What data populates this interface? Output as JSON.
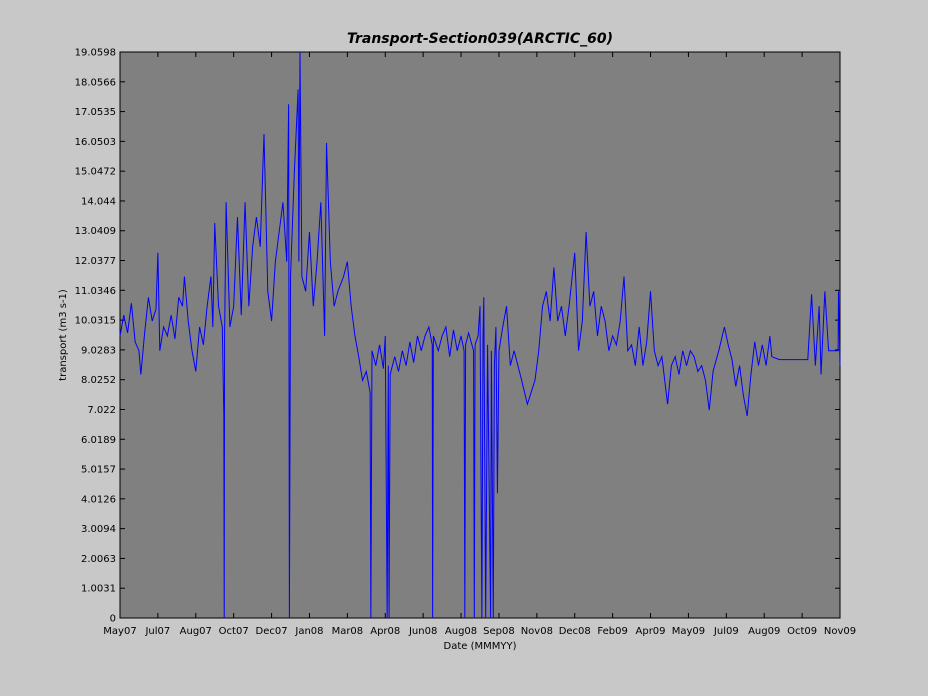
{
  "chart_data": {
    "type": "line",
    "title": "Transport-Section039(ARCTIC_60)",
    "x_label": "Date (MMMYY)",
    "y_label": "transport (m3 s-1)",
    "xlim": [
      0,
      19
    ],
    "ylim": [
      0,
      19.0598
    ],
    "xticks": [
      {
        "value": 0,
        "label": "May07"
      },
      {
        "value": 1,
        "label": "Jul07"
      },
      {
        "value": 2,
        "label": "Aug07"
      },
      {
        "value": 3,
        "label": "Oct07"
      },
      {
        "value": 4,
        "label": "Dec07"
      },
      {
        "value": 5,
        "label": "Jan08"
      },
      {
        "value": 6,
        "label": "Mar08"
      },
      {
        "value": 7,
        "label": "Apr08"
      },
      {
        "value": 8,
        "label": "Jun08"
      },
      {
        "value": 9,
        "label": "Aug08"
      },
      {
        "value": 10,
        "label": "Sep08"
      },
      {
        "value": 11,
        "label": "Nov08"
      },
      {
        "value": 12,
        "label": "Dec08"
      },
      {
        "value": 13,
        "label": "Feb09"
      },
      {
        "value": 14,
        "label": "Apr09"
      },
      {
        "value": 15,
        "label": "May09"
      },
      {
        "value": 16,
        "label": "Jul09"
      },
      {
        "value": 17,
        "label": "Aug09"
      },
      {
        "value": 18,
        "label": "Oct09"
      },
      {
        "value": 19,
        "label": "Nov09"
      }
    ],
    "yticks": [
      0,
      1.0031,
      2.0063,
      3.0094,
      4.0126,
      5.0157,
      6.0189,
      7.022,
      8.0252,
      9.0283,
      10.0315,
      11.0346,
      12.0377,
      13.0409,
      14.044,
      15.0472,
      16.0503,
      17.0535,
      18.0566,
      19.0598
    ],
    "x": [
      0,
      0.1,
      0.2,
      0.3,
      0.4,
      0.5,
      0.55,
      0.65,
      0.75,
      0.85,
      0.95,
      1.0,
      1.05,
      1.15,
      1.25,
      1.35,
      1.45,
      1.55,
      1.65,
      1.7,
      1.8,
      1.9,
      2.0,
      2.1,
      2.2,
      2.3,
      2.4,
      2.45,
      2.5,
      2.6,
      2.7,
      2.74,
      2.75,
      2.76,
      2.8,
      2.9,
      3.0,
      3.1,
      3.2,
      3.3,
      3.4,
      3.5,
      3.6,
      3.7,
      3.8,
      3.9,
      4.0,
      4.1,
      4.2,
      4.3,
      4.4,
      4.45,
      4.47,
      4.5,
      4.6,
      4.7,
      4.72,
      4.75,
      4.8,
      4.9,
      5.0,
      5.1,
      5.2,
      5.3,
      5.4,
      5.45,
      5.55,
      5.65,
      5.75,
      5.9,
      6.0,
      6.1,
      6.2,
      6.3,
      6.4,
      6.5,
      6.6,
      6.62,
      6.65,
      6.75,
      6.85,
      6.95,
      7.0,
      7.05,
      7.08,
      7.1,
      7.13,
      7.25,
      7.35,
      7.45,
      7.55,
      7.65,
      7.75,
      7.85,
      7.95,
      8.05,
      8.15,
      8.24,
      8.25,
      8.27,
      8.4,
      8.5,
      8.6,
      8.7,
      8.8,
      8.9,
      9.0,
      9.08,
      9.1,
      9.12,
      9.2,
      9.33,
      9.35,
      9.37,
      9.45,
      9.5,
      9.55,
      9.58,
      9.6,
      9.65,
      9.7,
      9.78,
      9.8,
      9.85,
      9.88,
      9.92,
      9.96,
      10.0,
      10.1,
      10.2,
      10.3,
      10.4,
      10.5,
      10.6,
      10.75,
      10.85,
      10.95,
      11.05,
      11.15,
      11.25,
      11.35,
      11.45,
      11.55,
      11.65,
      11.75,
      11.85,
      12.0,
      12.1,
      12.2,
      12.3,
      12.4,
      12.5,
      12.6,
      12.7,
      12.8,
      12.9,
      13.0,
      13.1,
      13.2,
      13.3,
      13.4,
      13.5,
      13.6,
      13.7,
      13.8,
      13.9,
      14.0,
      14.1,
      14.2,
      14.3,
      14.45,
      14.55,
      14.65,
      14.75,
      14.85,
      14.95,
      15.05,
      15.15,
      15.25,
      15.35,
      15.45,
      15.55,
      15.65,
      15.8,
      15.95,
      16.05,
      16.15,
      16.25,
      16.35,
      16.45,
      16.55,
      16.65,
      16.75,
      16.85,
      16.95,
      17.05,
      17.15,
      17.2,
      17.4,
      18.15,
      18.25,
      18.35,
      18.45,
      18.5,
      18.6,
      18.7,
      18.95,
      18.96,
      19.0
    ],
    "series": [
      {
        "color": "#0000ff",
        "values": [
          9.5,
          10.2,
          9.6,
          10.6,
          9.3,
          9.0,
          8.2,
          9.6,
          10.8,
          10.0,
          10.4,
          12.3,
          9.0,
          9.8,
          9.5,
          10.2,
          9.4,
          10.8,
          10.5,
          11.5,
          10.0,
          9.0,
          8.3,
          9.8,
          9.2,
          10.5,
          11.5,
          9.8,
          13.3,
          10.5,
          9.8,
          6.8,
          0,
          9.5,
          14.0,
          9.8,
          10.5,
          13.5,
          10.2,
          14.0,
          10.5,
          12.5,
          13.5,
          12.5,
          16.3,
          11.0,
          10.0,
          12.0,
          13.0,
          14.0,
          12.0,
          17.3,
          0,
          11.5,
          15.0,
          17.8,
          12,
          19.06,
          11.5,
          11.0,
          13.0,
          10.5,
          12,
          14.0,
          9.5,
          16.0,
          12.0,
          10.5,
          11.0,
          11.5,
          12.0,
          10.5,
          9.5,
          8.8,
          8.0,
          8.3,
          7.6,
          0,
          9.0,
          8.5,
          9.2,
          8.4,
          9.5,
          0,
          8.5,
          0,
          8.2,
          8.8,
          8.3,
          9.0,
          8.5,
          9.3,
          8.6,
          9.5,
          9.0,
          9.5,
          9.8,
          9.2,
          0,
          9.5,
          9.0,
          9.5,
          9.8,
          8.8,
          9.7,
          9.0,
          9.5,
          9.0,
          0,
          9.2,
          9.6,
          9.0,
          0,
          9.2,
          9.5,
          10.5,
          0,
          9.5,
          10.8,
          0,
          9.2,
          0,
          9.0,
          0,
          8.5,
          9.8,
          4.2,
          9.0,
          9.8,
          10.5,
          8.5,
          9.0,
          8.5,
          8.0,
          7.2,
          7.6,
          8.0,
          9.0,
          10.5,
          11.0,
          10.0,
          11.8,
          10.0,
          10.5,
          9.5,
          10.5,
          12.3,
          9.0,
          10.0,
          13.0,
          10.5,
          11.0,
          9.5,
          10.5,
          10.0,
          9.0,
          9.5,
          9.2,
          10.0,
          11.5,
          9.0,
          9.2,
          8.5,
          9.8,
          8.5,
          9.3,
          11.0,
          9.0,
          8.5,
          8.8,
          7.2,
          8.5,
          8.8,
          8.2,
          9.0,
          8.5,
          9.0,
          8.8,
          8.3,
          8.5,
          8.0,
          7.0,
          8.3,
          9.0,
          9.8,
          9.2,
          8.7,
          7.8,
          8.5,
          7.5,
          6.8,
          8.2,
          9.3,
          8.5,
          9.2,
          8.5,
          9.5,
          8.8,
          8.7,
          8.7,
          10.9,
          8.5,
          10.5,
          8.2,
          11.0,
          9.0,
          9.0,
          11.0,
          8.5
        ]
      }
    ]
  }
}
